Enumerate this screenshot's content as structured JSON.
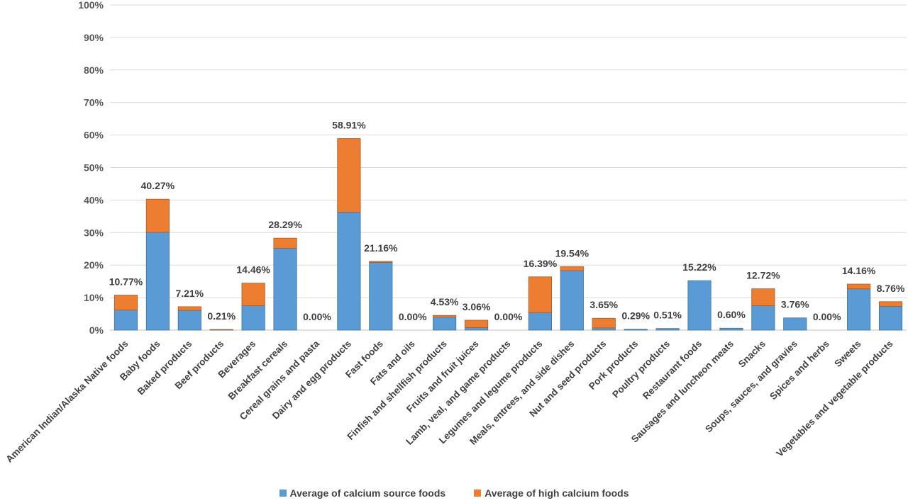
{
  "chart_data": {
    "type": "bar",
    "stacked": true,
    "title": "",
    "xlabel": "",
    "ylabel": "",
    "ylim": [
      0,
      100
    ],
    "y_ticks": [
      "0%",
      "10%",
      "20%",
      "30%",
      "40%",
      "50%",
      "60%",
      "70%",
      "80%",
      "90%",
      "100%"
    ],
    "grid": true,
    "legend_position": "bottom",
    "categories": [
      "American Indian/Alaska Native foods",
      "Baby foods",
      "Baked products",
      "Beef products",
      "Beverages",
      "Breakfast cereals",
      "Cereal grains and pasta",
      "Dairy and egg products",
      "Fast foods",
      "Fats and oils",
      "Finfish and shellfish products",
      "Fruits and fruit juices",
      "Lamb, veal, and game products",
      "Legumes and legume products",
      "Meals, entrees, and side dishes",
      "Nut and seed products",
      "Pork products",
      "Poultry products",
      "Restaurant foods",
      "Sausages and luncheon meats",
      "Snacks",
      "Soups, sauces, and gravies",
      "Spices and herbs",
      "Sweets",
      "Vegetables and vegetable products"
    ],
    "series": [
      {
        "name": "Average of calcium source foods",
        "color": "#5B9BD5",
        "values": [
          6.2,
          30.1,
          6.1,
          0.1,
          7.5,
          25.2,
          0,
          36.3,
          20.8,
          0,
          4.0,
          0.8,
          0,
          5.4,
          18.3,
          0.7,
          0.29,
          0.51,
          15.22,
          0.6,
          7.5,
          3.76,
          0,
          12.7,
          7.3
        ]
      },
      {
        "name": "Average of high calcium foods",
        "color": "#ED7D31",
        "values": [
          4.57,
          10.17,
          1.11,
          0.11,
          6.96,
          3.09,
          0,
          22.61,
          0.36,
          0,
          0.53,
          2.26,
          0,
          10.99,
          1.24,
          2.95,
          0,
          0,
          0,
          0,
          5.22,
          0,
          0,
          1.46,
          1.46
        ]
      }
    ],
    "totals_labels": [
      "10.77%",
      "40.27%",
      "7.21%",
      "0.21%",
      "14.46%",
      "28.29%",
      "0.00%",
      "58.91%",
      "21.16%",
      "0.00%",
      "4.53%",
      "3.06%",
      "0.00%",
      "16.39%",
      "19.54%",
      "3.65%",
      "0.29%",
      "0.51%",
      "15.22%",
      "0.60%",
      "12.72%",
      "3.76%",
      "0.00%",
      "14.16%",
      "8.76%"
    ]
  }
}
